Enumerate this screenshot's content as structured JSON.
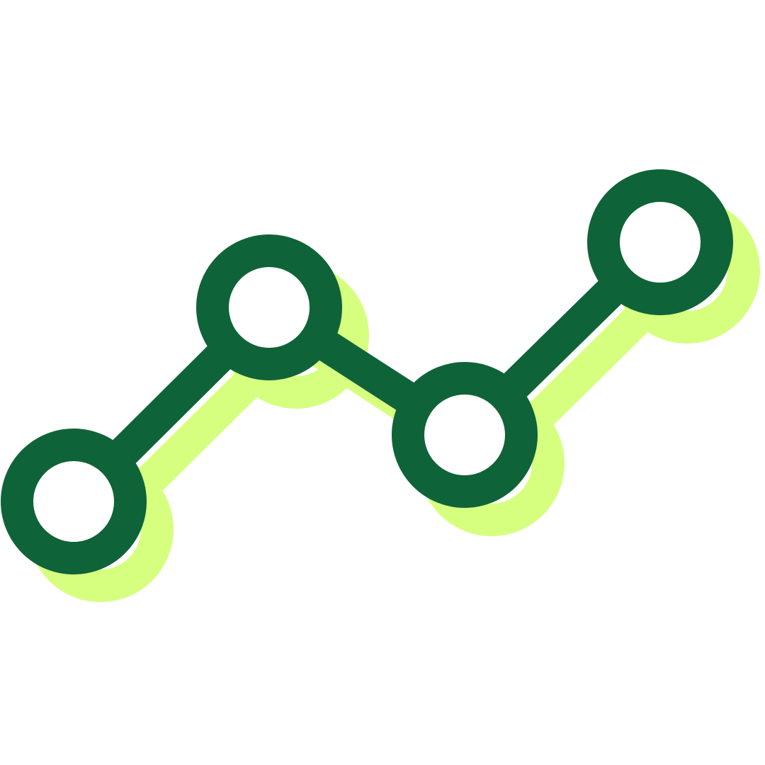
{
  "icon": {
    "name": "line-graph-icon",
    "node_count": 4,
    "colors": {
      "background": "#ffffff",
      "primary": "#0f6338",
      "shadow": "#d6ff80"
    }
  }
}
